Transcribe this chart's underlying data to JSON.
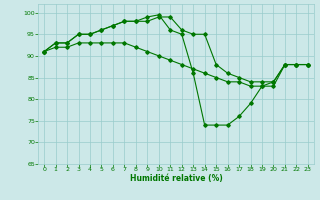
{
  "xlabel": "Humidité relative (%)",
  "bg_color": "#cce8e8",
  "grid_color": "#99cccc",
  "line_color": "#007700",
  "xlim": [
    -0.5,
    23.5
  ],
  "ylim": [
    65,
    102
  ],
  "yticks": [
    65,
    70,
    75,
    80,
    85,
    90,
    95,
    100
  ],
  "xticks": [
    0,
    1,
    2,
    3,
    4,
    5,
    6,
    7,
    8,
    9,
    10,
    11,
    12,
    13,
    14,
    15,
    16,
    17,
    18,
    19,
    20,
    21,
    22,
    23
  ],
  "series1_x": [
    0,
    1,
    2,
    3,
    4,
    5,
    6,
    7,
    8,
    9,
    10,
    11,
    12,
    13,
    14,
    15,
    16,
    17,
    18,
    19,
    20,
    21,
    22,
    23
  ],
  "series1_y": [
    91,
    93,
    93,
    95,
    95,
    96,
    97,
    98,
    98,
    99,
    99.5,
    96,
    95,
    86,
    74,
    74,
    74,
    76,
    79,
    83,
    84,
    88,
    88,
    88
  ],
  "series2_x": [
    0,
    1,
    2,
    3,
    4,
    5,
    6,
    7,
    8,
    9,
    10,
    11,
    12,
    13,
    14,
    15,
    16,
    17,
    18,
    19,
    20,
    21,
    22,
    23
  ],
  "series2_y": [
    91,
    93,
    93,
    95,
    95,
    96,
    97,
    98,
    98,
    98,
    99,
    99,
    96,
    95,
    95,
    88,
    86,
    85,
    84,
    84,
    84,
    88,
    88,
    88
  ],
  "series3_x": [
    0,
    1,
    2,
    3,
    4,
    5,
    6,
    7,
    8,
    9,
    10,
    11,
    12,
    13,
    14,
    15,
    16,
    17,
    18,
    19,
    20,
    21,
    22,
    23
  ],
  "series3_y": [
    91,
    92,
    92,
    93,
    93,
    93,
    93,
    93,
    92,
    91,
    90,
    89,
    88,
    87,
    86,
    85,
    84,
    84,
    83,
    83,
    83,
    88,
    88,
    88
  ]
}
